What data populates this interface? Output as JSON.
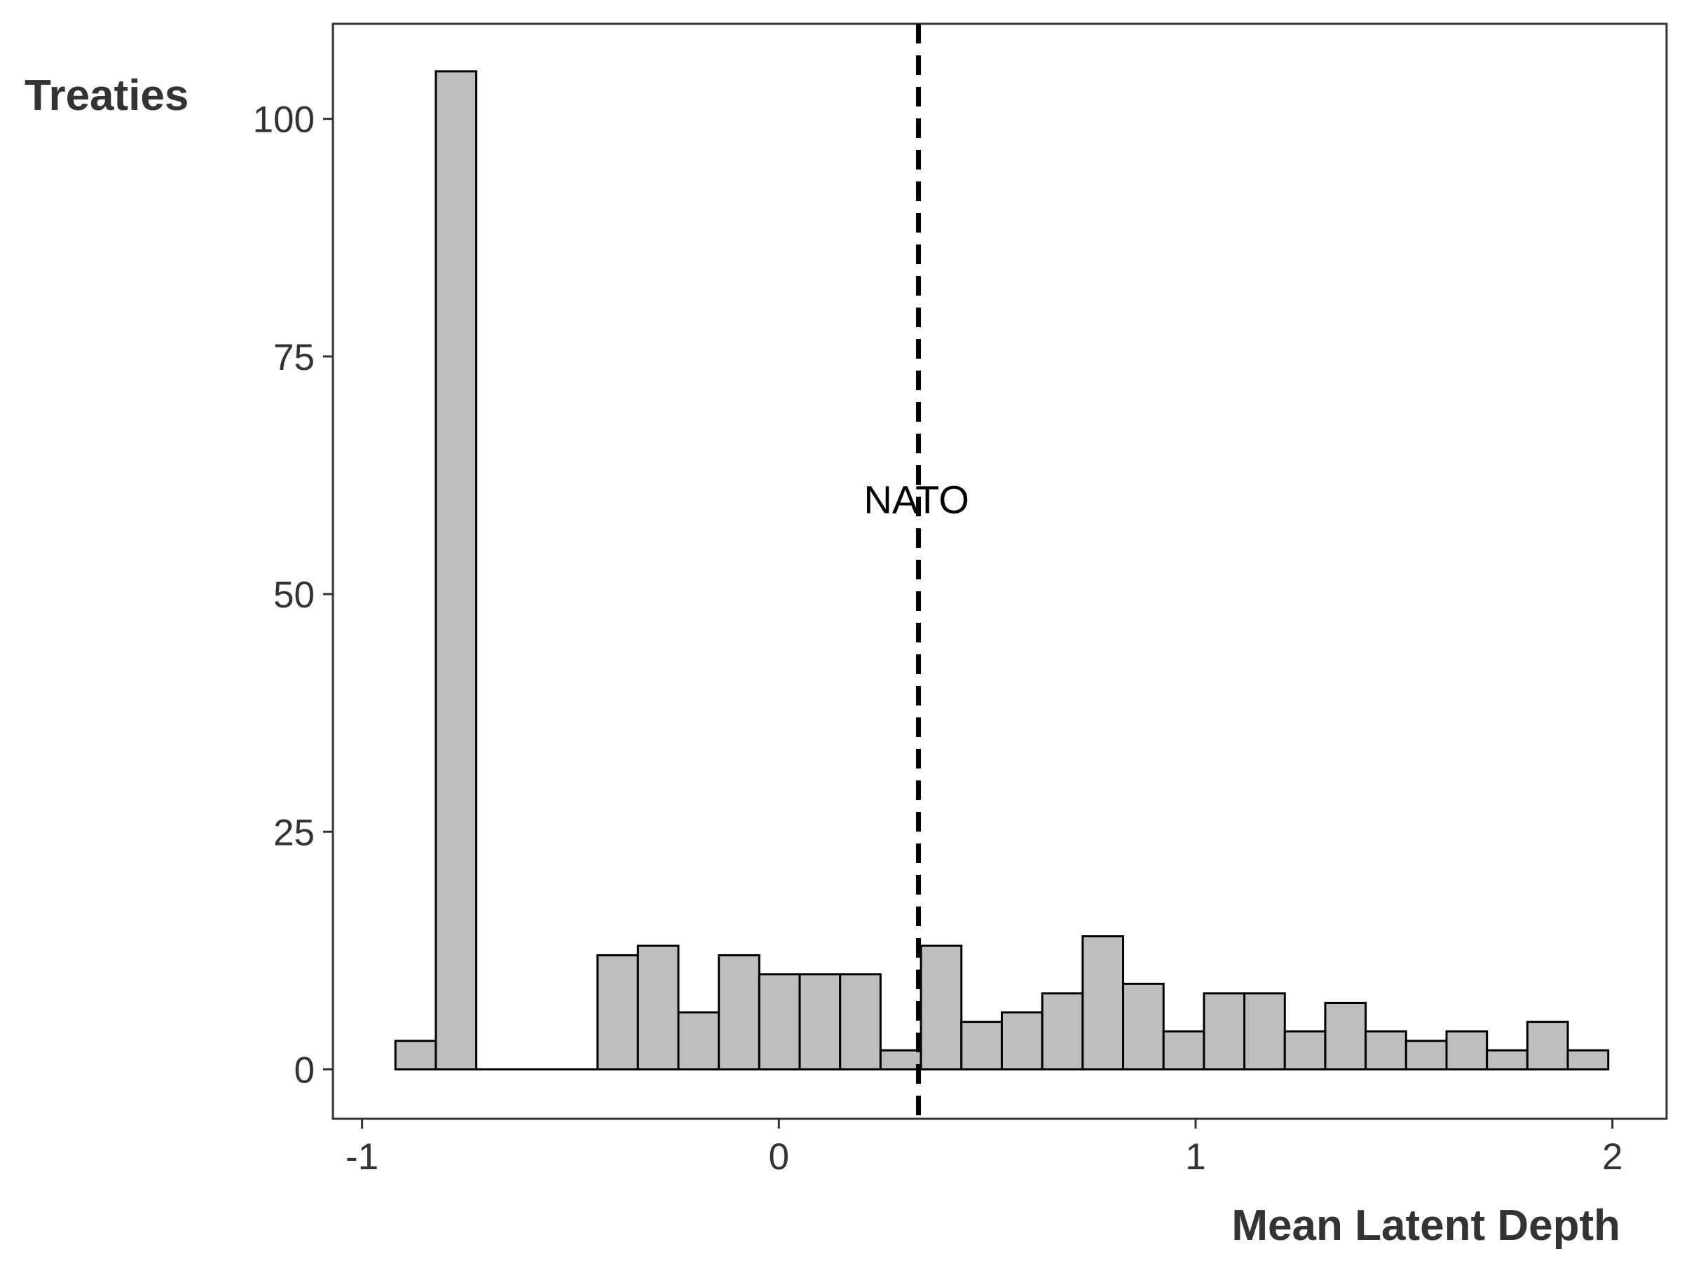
{
  "chart_data": {
    "type": "bar",
    "xlabel": "Mean Latent Depth",
    "ylabel": "Treaties",
    "xlim": [
      -1.07,
      2.13
    ],
    "ylim": [
      -5.2,
      110
    ],
    "x_ticks": [
      -1,
      0,
      1,
      2
    ],
    "x_tick_labels": [
      "-1",
      "0",
      "1",
      "2"
    ],
    "y_ticks": [
      0,
      25,
      50,
      75,
      100
    ],
    "y_tick_labels": [
      "0",
      "25",
      "50",
      "75",
      "100"
    ],
    "grid": false,
    "bar_fill": "#bebebe",
    "bar_stroke": "#000000",
    "bin_edges": [
      -0.92,
      -0.823,
      -0.726,
      -0.629,
      -0.532,
      -0.435,
      -0.338,
      -0.241,
      -0.144,
      -0.047,
      0.05,
      0.147,
      0.244,
      0.341,
      0.438,
      0.535,
      0.632,
      0.729,
      0.826,
      0.923,
      1.02,
      1.117,
      1.214,
      1.311,
      1.408,
      1.505,
      1.602,
      1.699,
      1.796,
      1.893,
      1.99
    ],
    "values": [
      3,
      105,
      0,
      0,
      0,
      12,
      13,
      6,
      12,
      10,
      10,
      10,
      2,
      13,
      5,
      6,
      8,
      14,
      9,
      4,
      8,
      8,
      4,
      7,
      4,
      3,
      4,
      2,
      5,
      2
    ],
    "reference_line": {
      "x": 0.335,
      "style": "dashed",
      "label": "NATO",
      "label_y": 60
    }
  }
}
